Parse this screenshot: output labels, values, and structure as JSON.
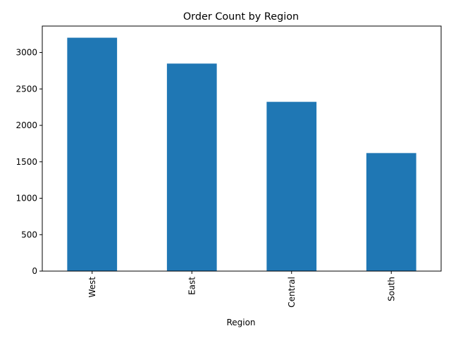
{
  "chart_data": {
    "type": "bar",
    "title": "Order Count by Region",
    "xlabel": "Region",
    "ylabel": "",
    "categories": [
      "West",
      "East",
      "Central",
      "South"
    ],
    "values": [
      3203,
      2848,
      2323,
      1620
    ],
    "ylim": [
      0,
      3363
    ],
    "yticks": [
      0,
      500,
      1000,
      1500,
      2000,
      2500,
      3000
    ],
    "bar_color": "#1f77b4",
    "grid": false,
    "legend": "none",
    "xtick_rotation": 90
  }
}
